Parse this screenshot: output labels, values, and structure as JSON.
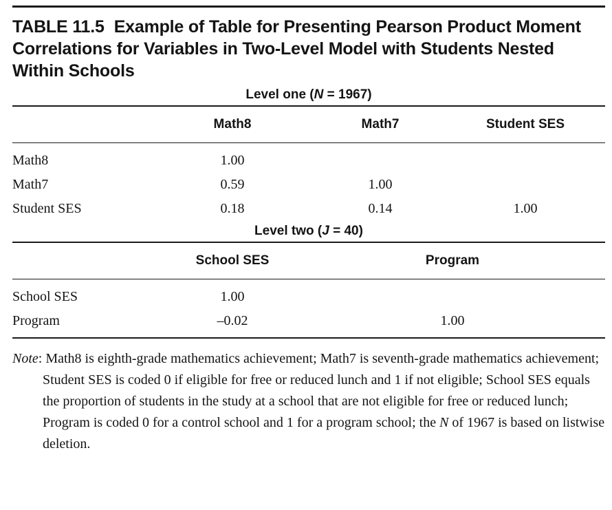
{
  "title": {
    "label": "TABLE 11.5",
    "text": "Example of Table for Presenting Pearson Product Moment Correlations for Variables in Two-Level Model with Students Nested Within Schools"
  },
  "level_one": {
    "heading_prefix": "Level one (",
    "heading_var": "N",
    "heading_suffix": " = 1967)",
    "columns": [
      "Math8",
      "Math7",
      "Student SES"
    ],
    "rows": [
      {
        "label": "Math8",
        "values": [
          "1.00",
          "",
          ""
        ]
      },
      {
        "label": "Math7",
        "values": [
          "0.59",
          "1.00",
          ""
        ]
      },
      {
        "label": "Student SES",
        "values": [
          "0.18",
          "0.14",
          "1.00"
        ]
      }
    ]
  },
  "level_two": {
    "heading_prefix": "Level two (",
    "heading_var": "J",
    "heading_suffix": " = 40)",
    "columns": [
      "School SES",
      "Program"
    ],
    "rows": [
      {
        "label": "School SES",
        "values": [
          "1.00",
          ""
        ]
      },
      {
        "label": "Program",
        "values": [
          "–0.02",
          "1.00"
        ]
      }
    ]
  },
  "note": {
    "label": "Note",
    "text_part1": ": Math8 is eighth-grade mathematics achievement; Math7 is seventh-grade mathematics achievement; Student SES is coded 0 if eligible for free or reduced lunch and 1 if not eligible; School SES equals the proportion of students in the study at a school that are not eligible for free or reduced lunch; Program is coded 0 for a control school and 1 for a program school; the ",
    "text_var": "N",
    "text_part2": " of 1967 is based on listwise deletion."
  }
}
